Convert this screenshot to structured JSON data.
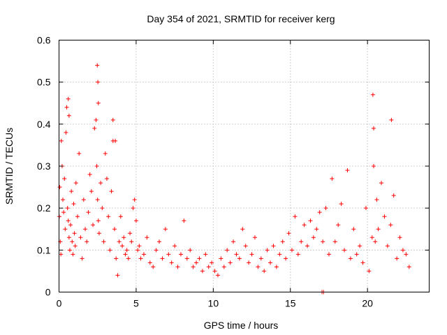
{
  "chart_data": {
    "type": "scatter",
    "title": "Day 354 of 2021, SRMTID for receiver kerg",
    "xlabel": "GPS time / hours",
    "ylabel": "SRMTID / TECUs",
    "xlim": [
      0,
      24
    ],
    "ylim": [
      0,
      0.6
    ],
    "x_ticks": [
      0,
      5,
      10,
      15,
      20
    ],
    "x_tick_labels": [
      "0",
      "5",
      "10",
      "15",
      "20"
    ],
    "y_ticks": [
      0,
      0.1,
      0.2,
      0.3,
      0.4,
      0.5,
      0.6
    ],
    "y_tick_labels": [
      "0",
      "0.1",
      "0.2",
      "0.3",
      "0.4",
      "0.5",
      "0.6"
    ],
    "grid": true,
    "marker": "plus",
    "color": "#ff0000",
    "series": [
      {
        "name": "SRMTID",
        "x": [
          0.02,
          0.05,
          0.08,
          0.12,
          0.15,
          0.2,
          0.25,
          0.3,
          0.35,
          0.4,
          0.45,
          0.5,
          0.55,
          0.6,
          0.65,
          0.7,
          0.75,
          0.8,
          0.85,
          0.9,
          0.95,
          1.0,
          1.05,
          1.1,
          1.2,
          1.3,
          1.4,
          1.5,
          1.6,
          1.7,
          1.8,
          1.9,
          2.0,
          2.1,
          2.2,
          2.3,
          2.4,
          2.45,
          2.5,
          2.55,
          2.6,
          2.7,
          2.8,
          2.9,
          3.0,
          3.1,
          3.2,
          3.3,
          3.4,
          3.5,
          3.6,
          3.7,
          3.8,
          3.9,
          4.0,
          4.1,
          4.2,
          4.3,
          4.4,
          4.5,
          4.6,
          4.7,
          4.8,
          4.9,
          5.0,
          5.1,
          5.2,
          5.3,
          5.5,
          5.7,
          5.9,
          6.1,
          6.3,
          6.5,
          6.7,
          6.9,
          7.1,
          7.3,
          7.5,
          7.7,
          7.9,
          8.1,
          8.3,
          8.5,
          8.7,
          8.9,
          9.1,
          9.3,
          9.5,
          9.7,
          9.9,
          10.1,
          10.3,
          10.5,
          10.7,
          10.9,
          11.1,
          11.3,
          11.5,
          11.7,
          11.9,
          12.1,
          12.3,
          12.5,
          12.7,
          12.9,
          13.1,
          13.3,
          13.5,
          13.7,
          13.9,
          14.1,
          14.3,
          14.5,
          14.7,
          14.9,
          15.1,
          15.3,
          15.5,
          15.7,
          15.9,
          16.1,
          16.3,
          16.5,
          16.7,
          16.9,
          17.1,
          17.3,
          17.5,
          17.7,
          17.9,
          18.1,
          18.3,
          18.5,
          18.7,
          18.9,
          19.1,
          19.3,
          19.5,
          19.7,
          19.9,
          20.1,
          20.3,
          20.4,
          20.5,
          20.6,
          20.7,
          20.9,
          21.1,
          21.3,
          21.5,
          21.7,
          21.9,
          22.1,
          22.3,
          22.5,
          22.7,
          0.6,
          0.65,
          2.48,
          2.52,
          2.55,
          3.5,
          3.65,
          20.35,
          20.4,
          21.55,
          17.05,
          17.15
        ],
        "y": [
          0.18,
          0.25,
          0.12,
          0.09,
          0.36,
          0.3,
          0.22,
          0.19,
          0.27,
          0.15,
          0.38,
          0.44,
          0.2,
          0.17,
          0.13,
          0.1,
          0.16,
          0.24,
          0.12,
          0.09,
          0.21,
          0.14,
          0.11,
          0.26,
          0.18,
          0.33,
          0.13,
          0.08,
          0.22,
          0.15,
          0.12,
          0.19,
          0.28,
          0.24,
          0.16,
          0.39,
          0.41,
          0.3,
          0.22,
          0.17,
          0.14,
          0.26,
          0.2,
          0.12,
          0.33,
          0.27,
          0.18,
          0.1,
          0.24,
          0.36,
          0.15,
          0.08,
          0.04,
          0.12,
          0.18,
          0.11,
          0.13,
          0.09,
          0.1,
          0.08,
          0.14,
          0.12,
          0.2,
          0.22,
          0.17,
          0.1,
          0.11,
          0.08,
          0.09,
          0.13,
          0.07,
          0.06,
          0.1,
          0.12,
          0.08,
          0.15,
          0.09,
          0.07,
          0.11,
          0.06,
          0.09,
          0.17,
          0.08,
          0.1,
          0.06,
          0.07,
          0.08,
          0.05,
          0.09,
          0.06,
          0.07,
          0.05,
          0.04,
          0.08,
          0.06,
          0.1,
          0.07,
          0.12,
          0.09,
          0.08,
          0.15,
          0.11,
          0.07,
          0.09,
          0.13,
          0.06,
          0.08,
          0.05,
          0.1,
          0.07,
          0.11,
          0.06,
          0.09,
          0.12,
          0.08,
          0.14,
          0.1,
          0.18,
          0.09,
          0.12,
          0.16,
          0.11,
          0.17,
          0.13,
          0.15,
          0.19,
          0.12,
          0.2,
          0.09,
          0.27,
          0.12,
          0.16,
          0.21,
          0.1,
          0.29,
          0.08,
          0.15,
          0.09,
          0.11,
          0.07,
          0.2,
          0.05,
          0.13,
          0.3,
          0.12,
          0.22,
          0.15,
          0.26,
          0.18,
          0.11,
          0.16,
          0.23,
          0.08,
          0.13,
          0.1,
          0.09,
          0.06,
          0.46,
          0.42,
          0.54,
          0.5,
          0.45,
          0.41,
          0.36,
          0.47,
          0.39,
          0.41,
          0.0,
          0.0
        ]
      }
    ]
  }
}
